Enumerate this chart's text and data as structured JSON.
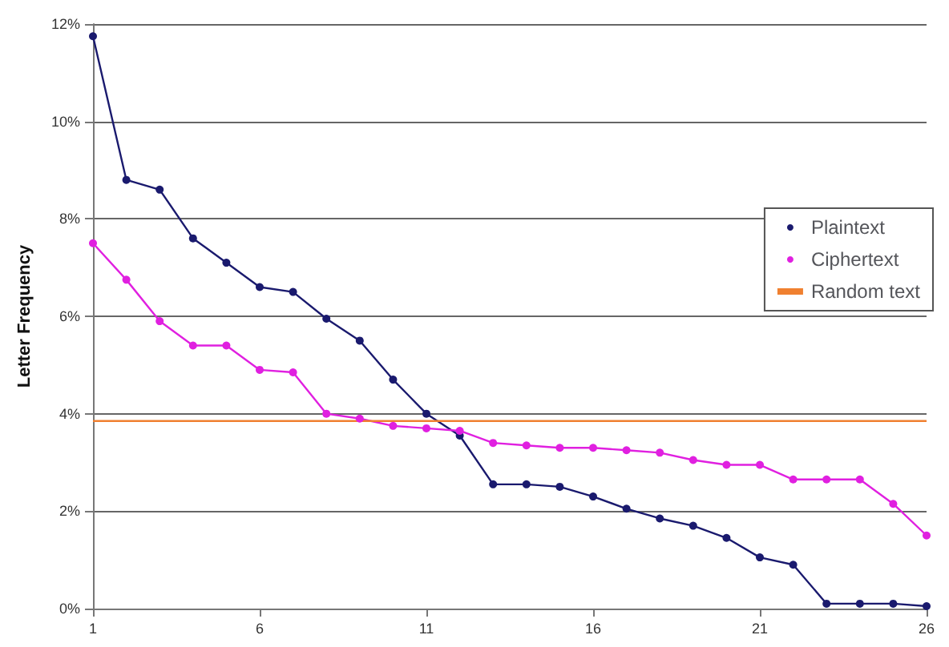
{
  "chart_data": {
    "type": "line",
    "ylabel": "Letter Frequency",
    "xlim": [
      1,
      26
    ],
    "xticks": [
      1,
      6,
      11,
      16,
      21,
      26
    ],
    "ylim": [
      0,
      12
    ],
    "yticks": [
      {
        "value": 0,
        "label": "0%"
      },
      {
        "value": 2,
        "label": "2%"
      },
      {
        "value": 4,
        "label": "4%"
      },
      {
        "value": 6,
        "label": "6%"
      },
      {
        "value": 8,
        "label": "8%"
      },
      {
        "value": 10,
        "label": "10%"
      },
      {
        "value": 12,
        "label": "12%"
      }
    ],
    "x": [
      1,
      2,
      3,
      4,
      5,
      6,
      7,
      8,
      9,
      10,
      11,
      12,
      13,
      14,
      15,
      16,
      17,
      18,
      19,
      20,
      21,
      22,
      23,
      24,
      25,
      26
    ],
    "grid": "y",
    "legend": "right",
    "marker": "circle",
    "series": [
      {
        "name": "Plaintext",
        "color": "#1a1a6e",
        "values": [
          11.75,
          8.8,
          8.6,
          7.6,
          7.1,
          6.6,
          6.5,
          5.95,
          5.5,
          4.7,
          4.0,
          3.55,
          2.55,
          2.55,
          2.5,
          2.3,
          2.05,
          1.85,
          1.7,
          1.45,
          1.05,
          0.9,
          0.1,
          0.1,
          0.1,
          0.05
        ]
      },
      {
        "name": "Ciphertext",
        "color": "#e020e0",
        "values": [
          7.5,
          6.75,
          5.9,
          5.4,
          5.4,
          4.9,
          4.85,
          4.0,
          3.9,
          3.75,
          3.7,
          3.65,
          3.4,
          3.35,
          3.3,
          3.3,
          3.25,
          3.2,
          3.05,
          2.95,
          2.95,
          2.65,
          2.65,
          2.65,
          2.15,
          1.5
        ]
      },
      {
        "name": "Random text",
        "color": "#f08030",
        "marker": "none",
        "x": [
          1,
          26
        ],
        "values": [
          3.85,
          3.85
        ]
      }
    ]
  }
}
